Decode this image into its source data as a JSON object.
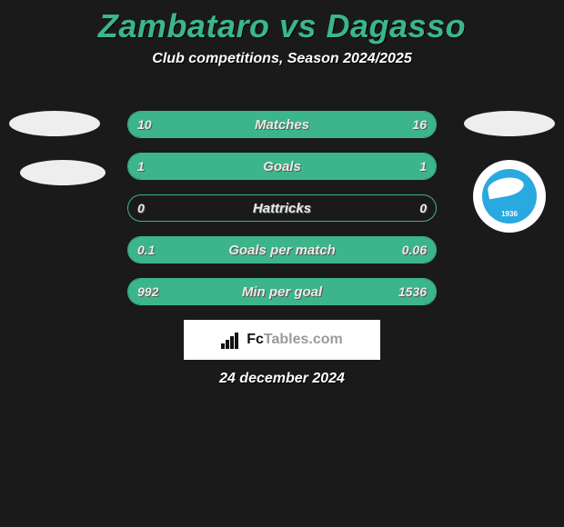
{
  "title": "Zambataro vs Dagasso",
  "subtitle": "Club competitions, Season 2024/2025",
  "date_text": "24 december 2024",
  "logo_text_left": "Fc",
  "logo_text_right": "Tables.com",
  "badge_year": "1936",
  "colors": {
    "background": "#1a1a1a",
    "accent": "#3cb58c",
    "text_light": "#e9ece4",
    "ellipse": "#eeeeee",
    "white": "#ffffff",
    "badge_blue": "#2aa8e0"
  },
  "rows": [
    {
      "label": "Matches",
      "left_val": "10",
      "right_val": "16",
      "left_fill_pct": 38,
      "right_fill_pct": 62
    },
    {
      "label": "Goals",
      "left_val": "1",
      "right_val": "1",
      "left_fill_pct": 50,
      "right_fill_pct": 50
    },
    {
      "label": "Hattricks",
      "left_val": "0",
      "right_val": "0",
      "left_fill_pct": 0,
      "right_fill_pct": 0
    },
    {
      "label": "Goals per match",
      "left_val": "0.1",
      "right_val": "0.06",
      "left_fill_pct": 62,
      "right_fill_pct": 38
    },
    {
      "label": "Min per goal",
      "left_val": "992",
      "right_val": "1536",
      "left_fill_pct": 39,
      "right_fill_pct": 61
    }
  ]
}
